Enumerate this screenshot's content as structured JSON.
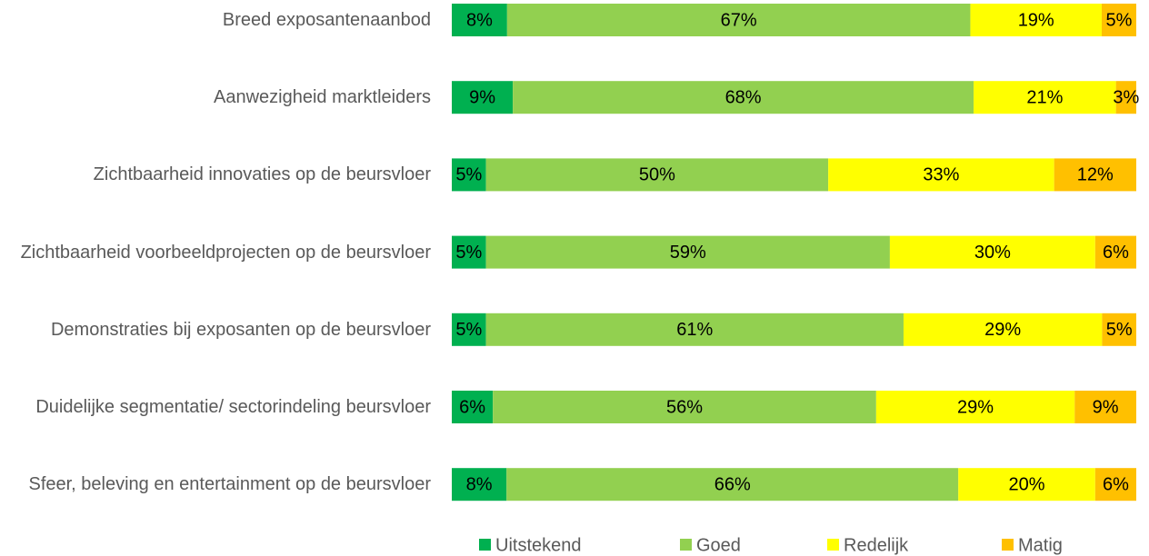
{
  "chart_data": {
    "type": "stacked_barh",
    "categories": [
      "Breed exposantenaanbod",
      "Aanwezigheid marktleiders",
      "Zichtbaarheid innovaties op de beursvloer",
      "Zichtbaarheid voorbeeldprojecten op de beursvloer",
      "Demonstraties bij exposanten op de beursvloer",
      "Duidelijke segmentatie/ sectorindeling beursvloer",
      "Sfeer, beleving en entertainment op de beursvloer"
    ],
    "series": [
      {
        "name": "Uitstekend",
        "color": "#00b050",
        "values": [
          8,
          9,
          5,
          5,
          5,
          6,
          8
        ],
        "value_labels": [
          "8%",
          "9%",
          "5%",
          "5%",
          "5%",
          "6%",
          "8%"
        ]
      },
      {
        "name": "Goed",
        "color": "#92d050",
        "values": [
          67,
          68,
          50,
          59,
          61,
          56,
          66
        ],
        "value_labels": [
          "67%",
          "68%",
          "50%",
          "59%",
          "61%",
          "56%",
          "66%"
        ]
      },
      {
        "name": "Redelijk",
        "color": "#ffff00",
        "values": [
          19,
          21,
          33,
          30,
          29,
          29,
          20
        ],
        "value_labels": [
          "19%",
          "21%",
          "33%",
          "30%",
          "29%",
          "29%",
          "20%"
        ]
      },
      {
        "name": "Matig",
        "color": "#ffc000",
        "values": [
          5,
          3,
          12,
          6,
          5,
          9,
          6
        ],
        "value_labels": [
          "5%",
          "3%",
          "12%",
          "6%",
          "5%",
          "9%",
          "6%"
        ]
      }
    ],
    "legend": "bottom"
  }
}
